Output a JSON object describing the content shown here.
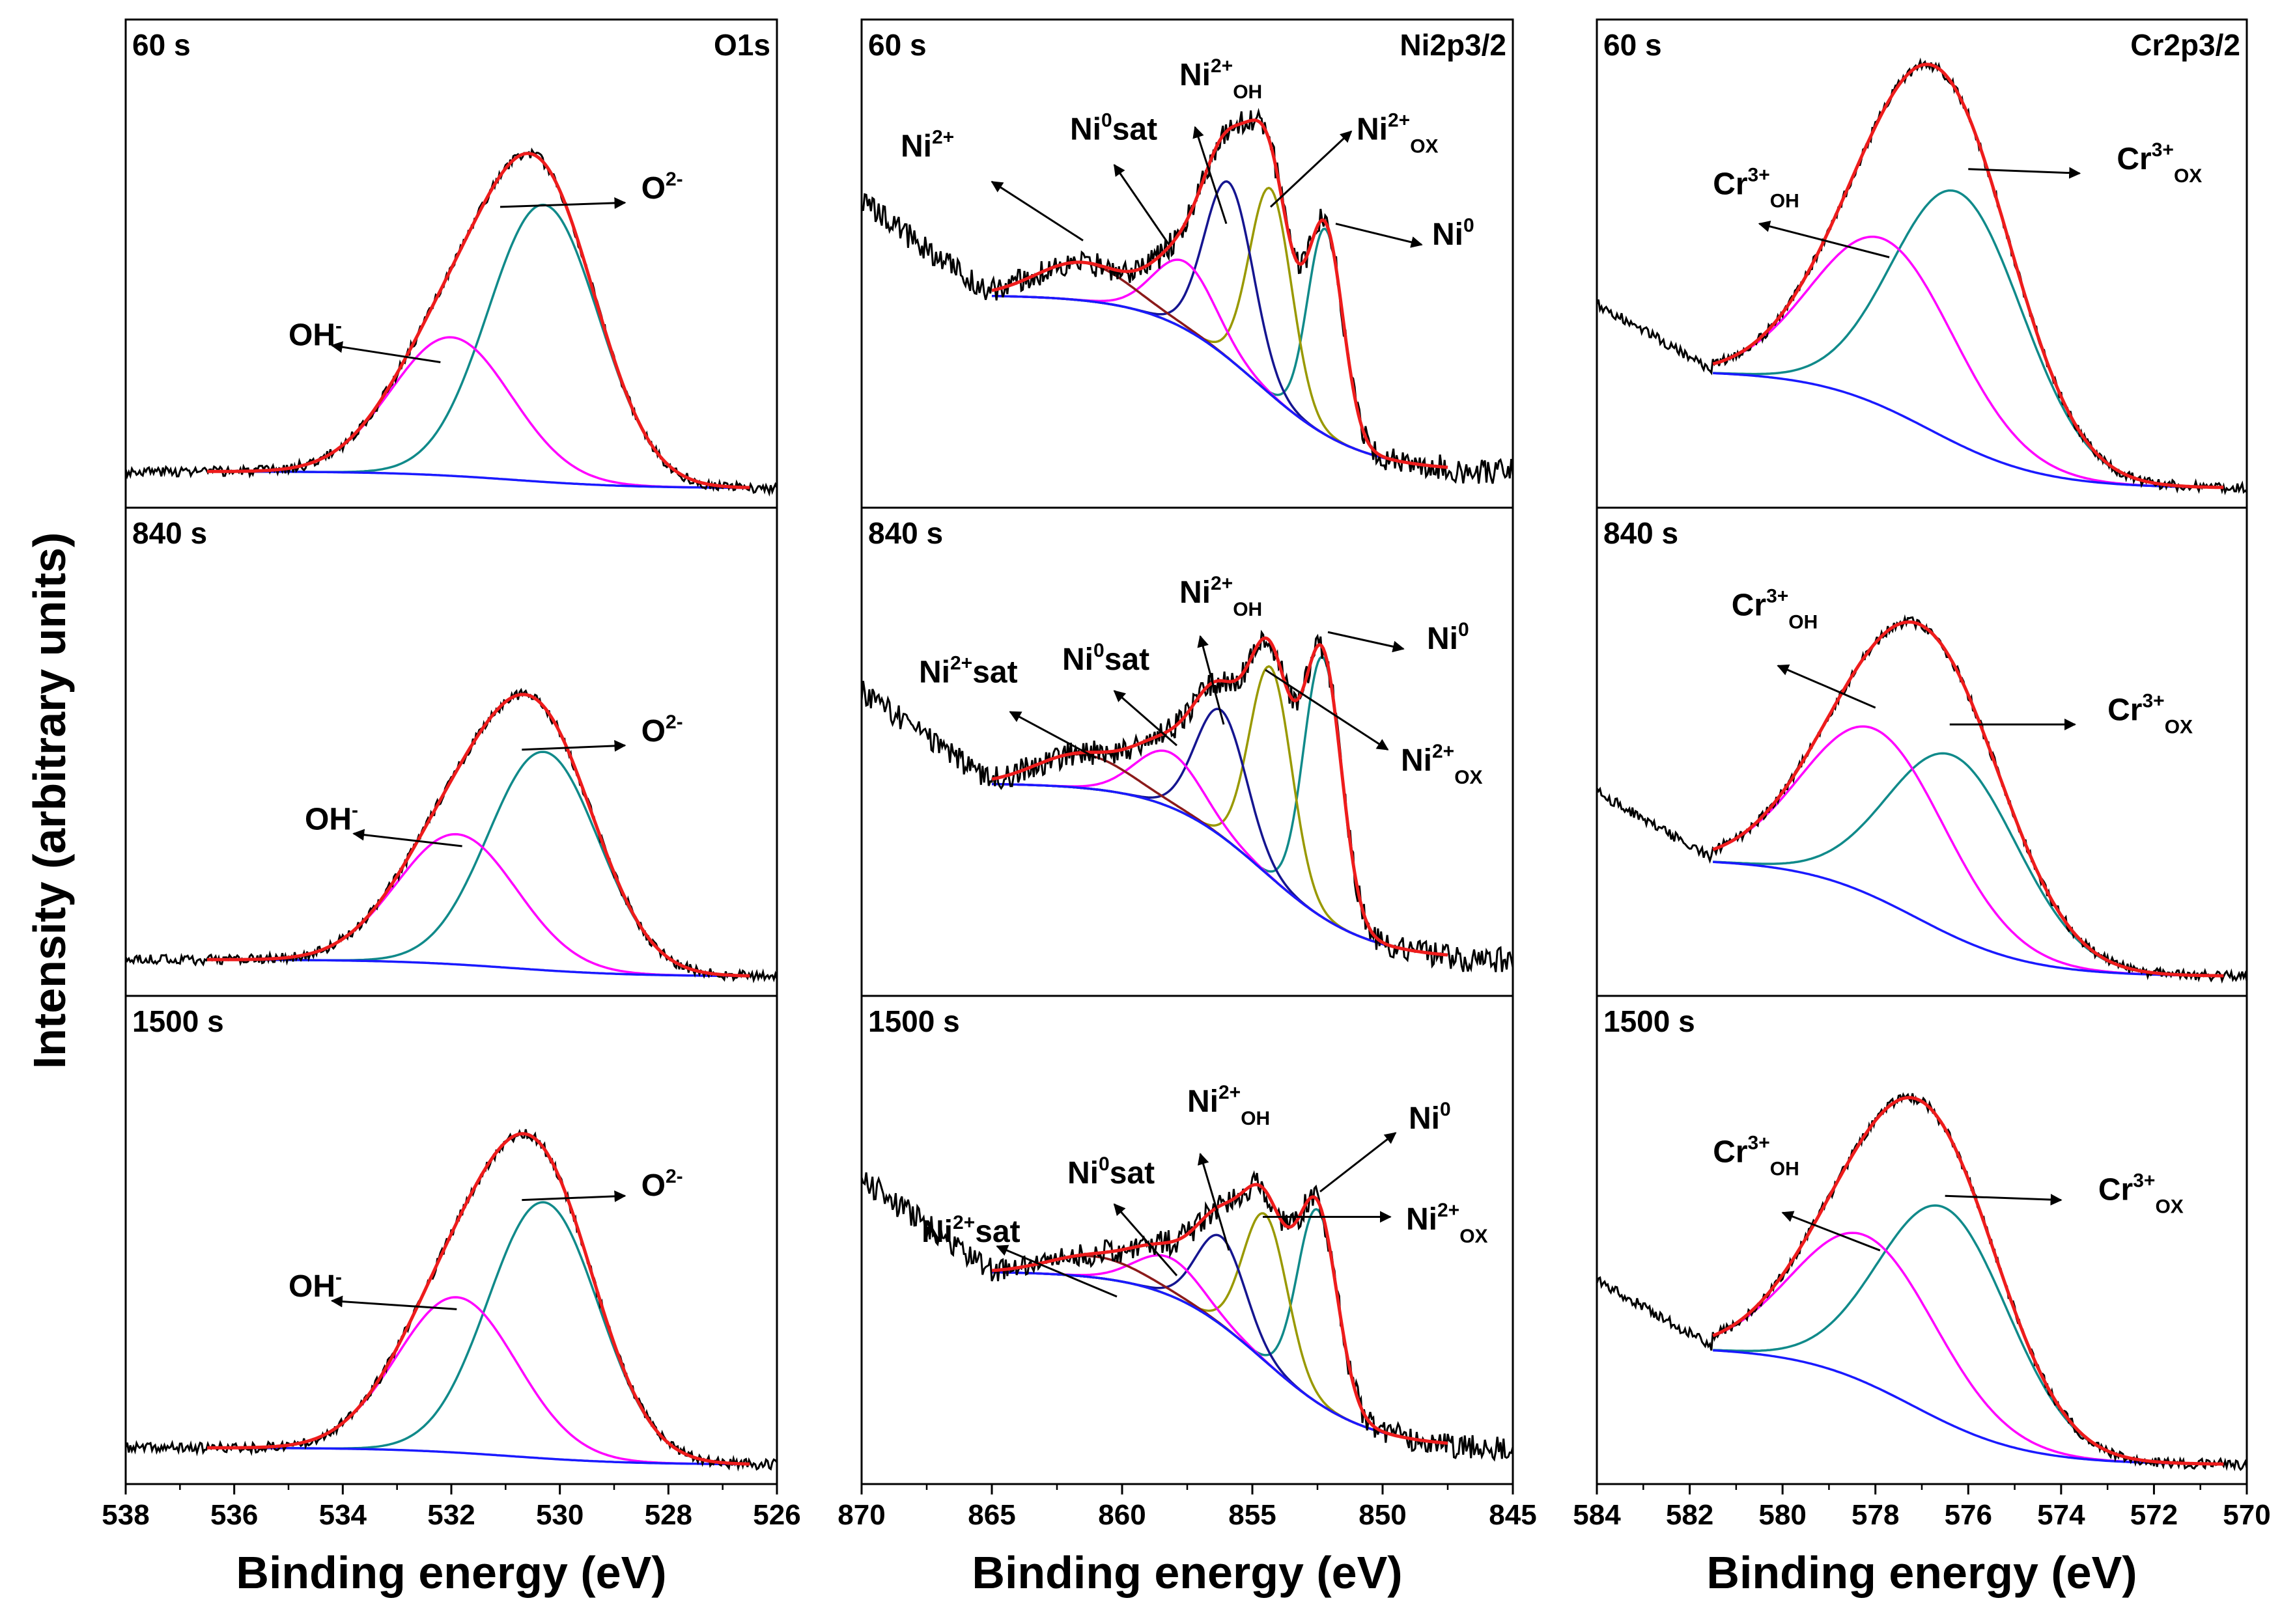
{
  "figure": {
    "ylabel": "Intensity (arbitrary units)",
    "xlabel": "Binding energy (eV)",
    "times": [
      "60 s",
      "840 s",
      "1500 s"
    ],
    "regions": [
      "O1s",
      "Ni2p3/2",
      "Cr2p3/2"
    ]
  },
  "colors": {
    "raw": "#000000",
    "envelope": "#ee1c1c",
    "background": "#1a1aff",
    "teal": "#108a8a",
    "magenta": "#ff00ff",
    "navy": "#151590",
    "olive": "#999900",
    "brown": "#8b1a1a"
  },
  "chart_data": [
    {
      "type": "line",
      "title": "O1s",
      "xlabel": "Binding energy (eV)",
      "ylabel": "Intensity (arbitrary units)",
      "xlim": [
        538,
        526
      ],
      "xticks": [
        538,
        536,
        534,
        532,
        530,
        528,
        526
      ],
      "xreversed": true,
      "rows": [
        {
          "time": "60 s",
          "fit_range": [
            536.5,
            526.5
          ],
          "raw_range": [
            538,
            526
          ],
          "bg": [
            0.04,
            0.0
          ],
          "components": [
            {
              "name": "O2-",
              "center": 530.3,
              "height": 0.66,
              "fwhm": 2.4,
              "color": "teal"
            },
            {
              "name": "OH-",
              "center": 532.0,
              "height": 0.33,
              "fwhm": 2.6,
              "color": "magenta"
            }
          ]
        },
        {
          "time": "840 s",
          "fit_range": [
            536.5,
            526.5
          ],
          "raw_range": [
            538,
            526
          ],
          "bg": [
            0.04,
            0.0
          ],
          "components": [
            {
              "name": "O2-",
              "center": 530.3,
              "height": 0.52,
              "fwhm": 2.4,
              "color": "teal"
            },
            {
              "name": "OH-",
              "center": 531.9,
              "height": 0.31,
              "fwhm": 2.6,
              "color": "magenta"
            }
          ]
        },
        {
          "time": "1500 s",
          "fit_range": [
            536.5,
            526.5
          ],
          "raw_range": [
            538,
            526
          ],
          "bg": [
            0.04,
            0.0
          ],
          "components": [
            {
              "name": "O2-",
              "center": 530.3,
              "height": 0.61,
              "fwhm": 2.4,
              "color": "teal"
            },
            {
              "name": "OH-",
              "center": 531.9,
              "height": 0.37,
              "fwhm": 2.6,
              "color": "magenta"
            }
          ]
        }
      ],
      "annotations": [
        [
          {
            "main": "O",
            "sup": "2-",
            "sub": "",
            "label_at": [
              528.5,
              0.69
            ],
            "arrow_from": [
              531.1,
              0.67
            ],
            "arrow_to": [
              528.8,
              0.68
            ]
          },
          {
            "main": "OH",
            "sup": "-",
            "sub": "",
            "label_at": [
              535.0,
              0.34
            ],
            "arrow_from": [
              532.2,
              0.3
            ],
            "arrow_to": [
              534.2,
              0.34
            ]
          }
        ],
        [
          {
            "main": "O",
            "sup": "2-",
            "sub": "",
            "label_at": [
              528.5,
              0.56
            ],
            "arrow_from": [
              530.7,
              0.54
            ],
            "arrow_to": [
              528.8,
              0.55
            ]
          },
          {
            "main": "OH",
            "sup": "-",
            "sub": "",
            "label_at": [
              534.7,
              0.35
            ],
            "arrow_from": [
              531.8,
              0.31
            ],
            "arrow_to": [
              533.8,
              0.34
            ]
          }
        ],
        [
          {
            "main": "O",
            "sup": "2-",
            "sub": "",
            "label_at": [
              528.5,
              0.64
            ],
            "arrow_from": [
              530.7,
              0.63
            ],
            "arrow_to": [
              528.8,
              0.64
            ]
          },
          {
            "main": "OH",
            "sup": "-",
            "sub": "",
            "label_at": [
              535.0,
              0.4
            ],
            "arrow_from": [
              531.9,
              0.37
            ],
            "arrow_to": [
              534.2,
              0.39
            ]
          }
        ]
      ]
    },
    {
      "type": "line",
      "title": "Ni2p3/2",
      "xlabel": "Binding energy (eV)",
      "ylabel": "Intensity (arbitrary units)",
      "xlim": [
        870,
        845
      ],
      "xticks": [
        870,
        865,
        860,
        855,
        850,
        845
      ],
      "xreversed": true,
      "rows": [
        {
          "time": "60 s",
          "fit_range": [
            865,
            847.5
          ],
          "raw_range": [
            870,
            845
          ],
          "bg": [
            0.46,
            0.04
          ],
          "components": [
            {
              "name": "Ni0",
              "center": 852.2,
              "height": 0.49,
              "fwhm": 1.6,
              "color": "teal"
            },
            {
              "name": "Ni2+OX",
              "center": 854.3,
              "height": 0.49,
              "fwhm": 1.9,
              "color": "olive"
            },
            {
              "name": "Ni2+OH",
              "center": 855.9,
              "height": 0.42,
              "fwhm": 2.2,
              "color": "navy"
            },
            {
              "name": "Ni0sat",
              "center": 857.6,
              "height": 0.16,
              "fwhm": 2.8,
              "color": "magenta"
            },
            {
              "name": "Ni2+sat",
              "center": 861.5,
              "height": 0.09,
              "fwhm": 4.2,
              "color": "brown"
            }
          ]
        },
        {
          "time": "840 s",
          "fit_range": [
            865,
            847.5
          ],
          "raw_range": [
            870,
            845
          ],
          "bg": [
            0.46,
            0.04
          ],
          "components": [
            {
              "name": "Ni0",
              "center": 852.3,
              "height": 0.62,
              "fwhm": 1.7,
              "color": "teal"
            },
            {
              "name": "Ni2+OX",
              "center": 854.3,
              "height": 0.5,
              "fwhm": 1.9,
              "color": "olive"
            },
            {
              "name": "Ni2+OH",
              "center": 856.2,
              "height": 0.3,
              "fwhm": 2.3,
              "color": "navy"
            },
            {
              "name": "Ni0sat",
              "center": 858.2,
              "height": 0.13,
              "fwhm": 3.0,
              "color": "magenta"
            },
            {
              "name": "Ni2+sat",
              "center": 861.5,
              "height": 0.08,
              "fwhm": 4.2,
              "color": "brown"
            }
          ]
        },
        {
          "time": "1500 s",
          "fit_range": [
            865,
            847.5
          ],
          "raw_range": [
            870,
            845
          ],
          "bg": [
            0.46,
            0.04
          ],
          "components": [
            {
              "name": "Ni0",
              "center": 852.5,
              "height": 0.46,
              "fwhm": 1.8,
              "color": "teal"
            },
            {
              "name": "Ni2+OX",
              "center": 854.5,
              "height": 0.35,
              "fwhm": 2.0,
              "color": "olive"
            },
            {
              "name": "Ni2+OH",
              "center": 856.2,
              "height": 0.21,
              "fwhm": 2.2,
              "color": "navy"
            },
            {
              "name": "Ni0sat",
              "center": 858.2,
              "height": 0.09,
              "fwhm": 3.0,
              "color": "magenta"
            },
            {
              "name": "Ni2+sat",
              "center": 861.0,
              "height": 0.05,
              "fwhm": 4.2,
              "color": "brown"
            }
          ]
        }
      ],
      "annotations": [
        [
          {
            "main": "Ni",
            "sup": "2+",
            "sub": "",
            "label_at": [
              868.5,
              0.79
            ],
            "arrow_from": [
              861.5,
              0.59
            ],
            "arrow_to": [
              865.0,
              0.73
            ]
          },
          {
            "main": "Ni",
            "sup": "0",
            "sub": "",
            "suffix": "sat",
            "label_at": [
              862.0,
              0.83
            ],
            "arrow_from": [
              858.2,
              0.58
            ],
            "arrow_to": [
              860.3,
              0.77
            ]
          },
          {
            "main": "Ni",
            "sup": "2+",
            "sub": "OH",
            "label_at": [
              857.8,
              0.96
            ],
            "arrow_from": [
              856.0,
              0.63
            ],
            "arrow_to": [
              857.2,
              0.86
            ]
          },
          {
            "main": "Ni",
            "sup": "2+",
            "sub": "OX",
            "label_at": [
              851.0,
              0.83
            ],
            "arrow_from": [
              854.3,
              0.67
            ],
            "arrow_to": [
              851.2,
              0.85
            ]
          },
          {
            "main": "Ni",
            "sup": "0",
            "sub": "",
            "label_at": [
              848.1,
              0.58
            ],
            "arrow_from": [
              851.8,
              0.63
            ],
            "arrow_to": [
              848.5,
              0.58
            ]
          }
        ],
        [
          {
            "main": "Ni",
            "sup": "2+",
            "sub": "",
            "suffix": "sat",
            "label_at": [
              867.8,
              0.7
            ],
            "arrow_from": [
              861.0,
              0.52
            ],
            "arrow_to": [
              864.3,
              0.63
            ]
          },
          {
            "main": "Ni",
            "sup": "0",
            "sub": "",
            "suffix": "sat",
            "label_at": [
              862.3,
              0.73
            ],
            "arrow_from": [
              857.9,
              0.55
            ],
            "arrow_to": [
              860.3,
              0.68
            ]
          },
          {
            "main": "Ni",
            "sup": "2+",
            "sub": "OH",
            "label_at": [
              857.8,
              0.89
            ],
            "arrow_from": [
              856.1,
              0.6
            ],
            "arrow_to": [
              857.0,
              0.81
            ]
          },
          {
            "main": "Ni",
            "sup": "2+",
            "sub": "OX",
            "label_at": [
              849.3,
              0.49
            ],
            "arrow_from": [
              854.5,
              0.73
            ],
            "arrow_to": [
              849.8,
              0.54
            ]
          },
          {
            "main": "Ni",
            "sup": "0",
            "sub": "",
            "label_at": [
              848.3,
              0.78
            ],
            "arrow_from": [
              852.1,
              0.82
            ],
            "arrow_to": [
              849.2,
              0.78
            ]
          }
        ],
        [
          {
            "main": "Ni",
            "sup": "2+",
            "sub": "",
            "suffix": "sat",
            "label_at": [
              867.7,
              0.53
            ],
            "arrow_from": [
              860.2,
              0.4
            ],
            "arrow_to": [
              864.8,
              0.52
            ]
          },
          {
            "main": "Ni",
            "sup": "0",
            "sub": "",
            "suffix": "sat",
            "label_at": [
              862.1,
              0.67
            ],
            "arrow_from": [
              857.9,
              0.45
            ],
            "arrow_to": [
              860.3,
              0.62
            ]
          },
          {
            "main": "Ni",
            "sup": "2+",
            "sub": "OH",
            "label_at": [
              857.5,
              0.84
            ],
            "arrow_from": [
              855.9,
              0.51
            ],
            "arrow_to": [
              857.0,
              0.74
            ]
          },
          {
            "main": "Ni",
            "sup": "2+",
            "sub": "OX",
            "label_at": [
              849.1,
              0.56
            ],
            "arrow_from": [
              854.6,
              0.59
            ],
            "arrow_to": [
              849.7,
              0.59
            ]
          },
          {
            "main": "Ni",
            "sup": "0",
            "sub": "",
            "label_at": [
              849.0,
              0.8
            ],
            "arrow_from": [
              852.4,
              0.65
            ],
            "arrow_to": [
              849.5,
              0.79
            ]
          }
        ]
      ]
    },
    {
      "type": "line",
      "title": "Cr2p3/2",
      "xlabel": "Binding energy (eV)",
      "ylabel": "Intensity (arbitrary units)",
      "xlim": [
        584,
        570
      ],
      "xticks": [
        584,
        582,
        580,
        578,
        576,
        574,
        572,
        570
      ],
      "xreversed": true,
      "rows": [
        {
          "time": "60 s",
          "fit_range": [
            581.5,
            570.5
          ],
          "raw_range": [
            584,
            570
          ],
          "bg": [
            0.28,
            0.0
          ],
          "components": [
            {
              "name": "Cr3+OX",
              "center": 576.2,
              "height": 0.6,
              "fwhm": 3.3,
              "color": "teal"
            },
            {
              "name": "Cr3+OH",
              "center": 577.8,
              "height": 0.4,
              "fwhm": 3.6,
              "color": "magenta"
            }
          ]
        },
        {
          "time": "840 s",
          "fit_range": [
            581.5,
            570.5
          ],
          "raw_range": [
            584,
            570
          ],
          "bg": [
            0.28,
            0.0
          ],
          "components": [
            {
              "name": "Cr3+OX",
              "center": 576.3,
              "height": 0.43,
              "fwhm": 3.3,
              "color": "teal"
            },
            {
              "name": "Cr3+OH",
              "center": 578.0,
              "height": 0.4,
              "fwhm": 3.6,
              "color": "magenta"
            }
          ]
        },
        {
          "time": "1500 s",
          "fit_range": [
            581.5,
            570.5
          ],
          "raw_range": [
            584,
            570
          ],
          "bg": [
            0.28,
            0.0
          ],
          "components": [
            {
              "name": "Cr3+OX",
              "center": 576.5,
              "height": 0.51,
              "fwhm": 3.3,
              "color": "teal"
            },
            {
              "name": "Cr3+OH",
              "center": 578.2,
              "height": 0.35,
              "fwhm": 3.6,
              "color": "magenta"
            }
          ]
        }
      ],
      "annotations": [
        [
          {
            "main": "Cr",
            "sup": "3+",
            "sub": "OX",
            "label_at": [
              572.8,
              0.76
            ],
            "arrow_from": [
              576.0,
              0.76
            ],
            "arrow_to": [
              573.6,
              0.75
            ]
          },
          {
            "main": "Cr",
            "sup": "3+",
            "sub": "OH",
            "label_at": [
              581.5,
              0.7
            ],
            "arrow_from": [
              577.7,
              0.55
            ],
            "arrow_to": [
              580.5,
              0.63
            ]
          }
        ],
        [
          {
            "main": "Cr",
            "sup": "3+",
            "sub": "OX",
            "label_at": [
              573.0,
              0.61
            ],
            "arrow_from": [
              576.4,
              0.6
            ],
            "arrow_to": [
              573.7,
              0.6
            ]
          },
          {
            "main": "Cr",
            "sup": "3+",
            "sub": "OH",
            "label_at": [
              581.1,
              0.86
            ],
            "arrow_from": [
              578.0,
              0.64
            ],
            "arrow_to": [
              580.1,
              0.74
            ]
          }
        ],
        [
          {
            "main": "Cr",
            "sup": "3+",
            "sub": "OX",
            "label_at": [
              573.2,
              0.63
            ],
            "arrow_from": [
              576.5,
              0.64
            ],
            "arrow_to": [
              574.0,
              0.63
            ]
          },
          {
            "main": "Cr",
            "sup": "3+",
            "sub": "OH",
            "label_at": [
              581.5,
              0.72
            ],
            "arrow_from": [
              577.9,
              0.51
            ],
            "arrow_to": [
              580.0,
              0.6
            ]
          }
        ]
      ]
    }
  ]
}
